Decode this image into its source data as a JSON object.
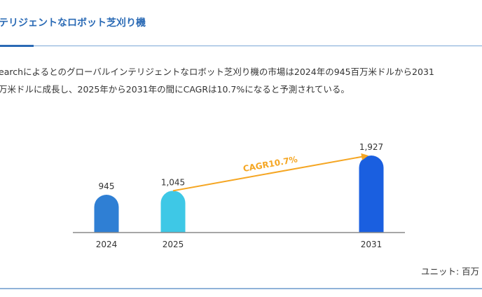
{
  "header": {
    "title": "テリジェントなロボット芝刈り機"
  },
  "body": {
    "line1": "earchによるとのグローバルインテリジェントなロボット芝刈り機の市場は2024年の945百万米ドルから2031",
    "line2": "万米ドルに成長し、2025年から2031年の間にCAGRは10.7%になると予測されている。"
  },
  "chart_data": {
    "type": "bar",
    "categories": [
      "2024",
      "2025",
      "2031"
    ],
    "values": [
      945,
      1045,
      1927
    ],
    "value_labels": [
      "945",
      "1,045",
      "1,927"
    ],
    "colors": [
      "#2f7fd4",
      "#3ec8e6",
      "#1a5fe0"
    ],
    "annotation": {
      "text": "CAGR10.7%",
      "from": "2025",
      "to": "2031",
      "color": "#f5a623"
    },
    "unit_label": "ユニット: 百万",
    "grid": false
  }
}
